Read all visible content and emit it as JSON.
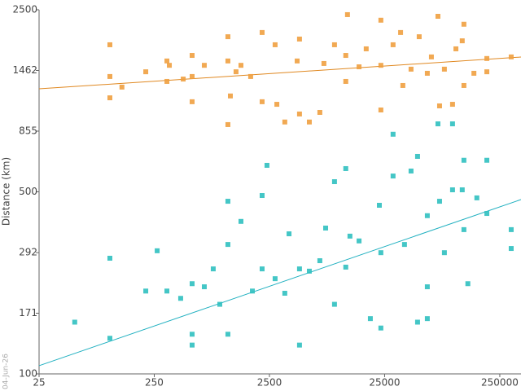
{
  "chart_data": {
    "type": "scatter",
    "y_label": "Distance (km)",
    "footnote": "04-Jun-26",
    "xscale": "log",
    "yscale": "log",
    "xlim": [
      25,
      382000
    ],
    "ylim": [
      100,
      2500
    ],
    "xticks": [
      25,
      250,
      2500,
      25000,
      250000
    ],
    "yticks": [
      100,
      171,
      292,
      500,
      855,
      1462,
      2500
    ],
    "series": [
      {
        "color": "#f0a040",
        "x": [
          103,
          103,
          103,
          131,
          211,
          322,
          322,
          338,
          446,
          533,
          533,
          533,
          680,
          1090,
          1090,
          1090,
          1145,
          1282,
          1415,
          1718,
          2160,
          2160,
          2800,
          2900,
          3400,
          4350,
          4560,
          4560,
          5550,
          6850,
          7430,
          9180,
          11500,
          11500,
          11900,
          15000,
          17300,
          23200,
          23200,
          23200,
          29600,
          34400,
          36000,
          42400,
          49900,
          58700,
          63700,
          72600,
          75000,
          82600,
          97200,
          104000,
          118000,
          122000,
          122000,
          149000,
          193000,
          193000,
          314000
        ],
        "values": [
          1835,
          1386,
          1148,
          1262,
          1445,
          1590,
          1327,
          1530,
          1355,
          1670,
          1109,
          1386,
          1530,
          1970,
          1590,
          906,
          1167,
          1445,
          1530,
          1386,
          2045,
          1109,
          1835,
          1084,
          927,
          1590,
          1930,
          995,
          927,
          1009,
          1555,
          1835,
          1670,
          1327,
          2395,
          1510,
          1770,
          2280,
          1530,
          1031,
          1835,
          2045,
          1280,
          1479,
          1970,
          1426,
          1648,
          2360,
          1069,
          1479,
          1084,
          1770,
          1900,
          2200,
          1280,
          1426,
          1625,
          1445,
          1648
        ]
      },
      {
        "color": "#30c0c0",
        "x": [
          51,
          103,
          103,
          211,
          265,
          322,
          424,
          533,
          533,
          533,
          680,
          813,
          927,
          1090,
          1090,
          1090,
          1415,
          1778,
          2160,
          2160,
          2380,
          2800,
          3400,
          3700,
          4560,
          4560,
          5550,
          6850,
          7690,
          9180,
          9180,
          11500,
          11500,
          12500,
          15000,
          18800,
          22500,
          23200,
          23200,
          29600,
          29600,
          37200,
          42400,
          48300,
          48300,
          58700,
          58700,
          58700,
          72600,
          75000,
          82600,
          97200,
          97200,
          118000,
          122000,
          122000,
          132000,
          158000,
          193000,
          193000,
          314000,
          314000
        ],
        "values": [
          158,
          278,
          137,
          208,
          297,
          208,
          195,
          222,
          142,
          129,
          216,
          253,
          185,
          460,
          314,
          142,
          385,
          208,
          484,
          253,
          632,
          232,
          204,
          345,
          253,
          129,
          248,
          272,
          363,
          185,
          547,
          614,
          257,
          338,
          324,
          163,
          444,
          150,
          292,
          575,
          832,
          314,
          601,
          158,
          684,
          405,
          216,
          163,
          912,
          460,
          292,
          509,
          912,
          509,
          661,
          358,
          222,
          474,
          413,
          661,
          358,
          303
        ]
      }
    ],
    "trend_lines": [
      {
        "color": "#e08820",
        "x": [
          25,
          382000
        ],
        "values": [
          1243,
          1646
        ]
      },
      {
        "color": "#20b0c0",
        "x": [
          25,
          382000
        ],
        "values": [
          107.5,
          467
        ]
      }
    ]
  }
}
